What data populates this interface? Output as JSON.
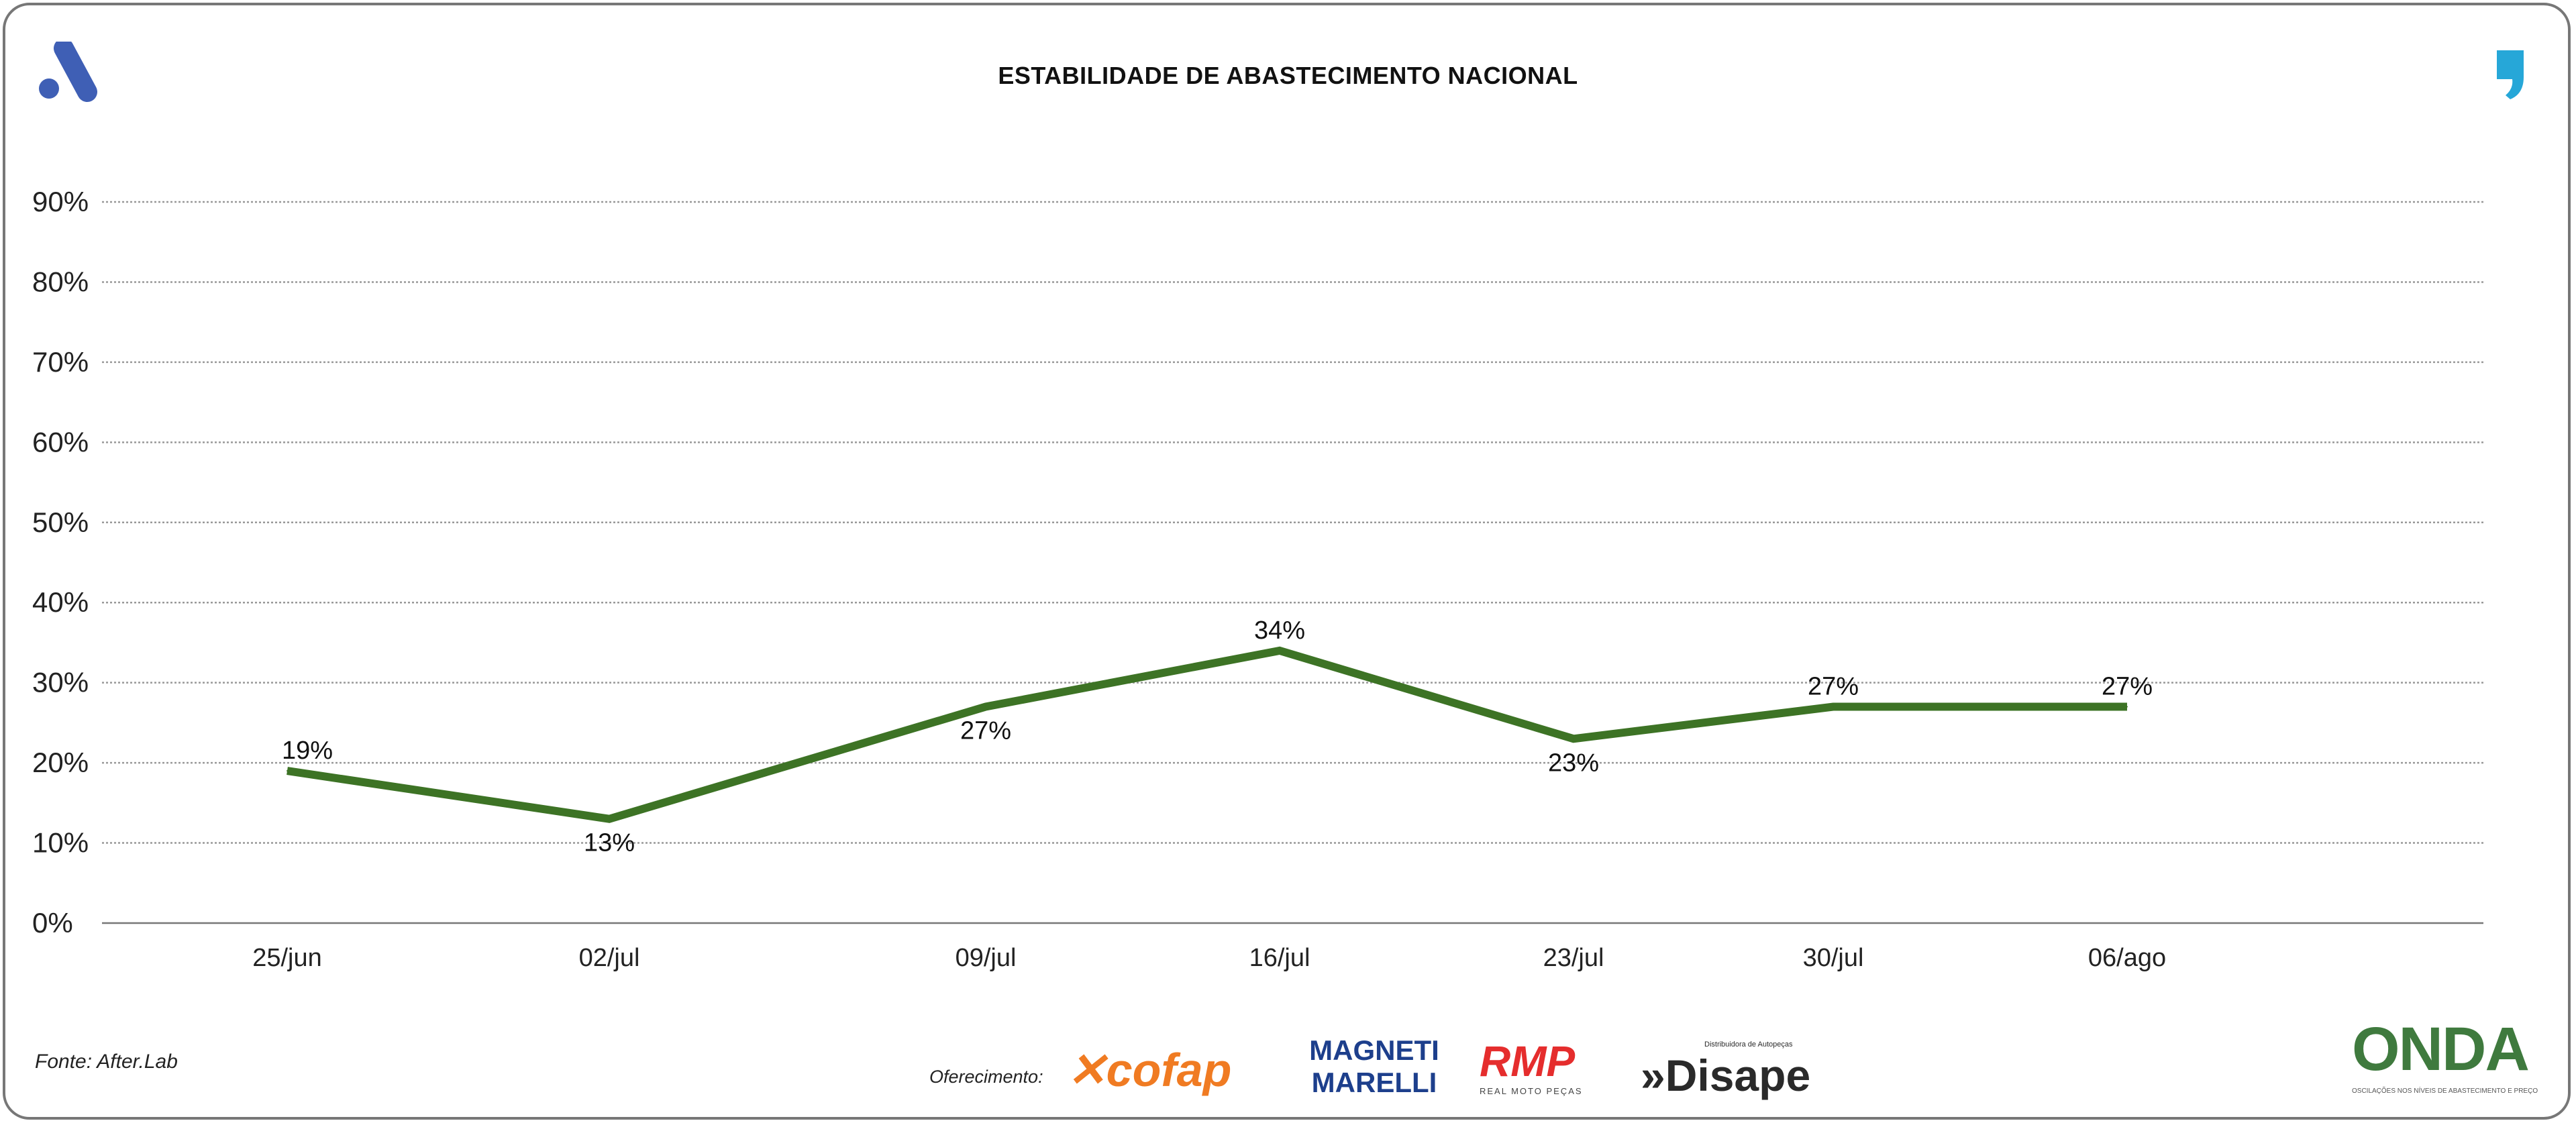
{
  "header": {
    "title": "ESTABILIDADE DE ABASTECIMENTO NACIONAL",
    "left_logo_icon": "a-logo-icon",
    "right_logo_icon": "comma-logo-icon"
  },
  "footer": {
    "source": "Fonte: After.Lab",
    "sponsor_label": "Oferecimento:",
    "sponsors": [
      "cofap",
      "MAGNETI MARELLI",
      "RMP",
      "Disape"
    ],
    "rmp_sub": "REAL MOTO PEÇAS",
    "disape_sub": "Distribuidora de Autopeças",
    "onda": "ONDA",
    "onda_sub": "OSCILAÇÕES NOS NÍVEIS DE ABASTECIMENTO E PREÇO"
  },
  "colors": {
    "line": "#3d7325",
    "grid": "#999999",
    "left_logo": "#3f5fb5",
    "right_logo": "#26a7d8"
  },
  "chart_data": {
    "type": "line",
    "title": "ESTABILIDADE DE ABASTECIMENTO NACIONAL",
    "categories": [
      "25/jun",
      "02/jul",
      "09/jul",
      "16/jul",
      "23/jul",
      "30/jul",
      "06/ago"
    ],
    "series": [
      {
        "values": [
          19,
          13,
          27,
          34,
          23,
          27,
          27
        ]
      }
    ],
    "data_labels": [
      "19%",
      "13%",
      "27%",
      "34%",
      "23%",
      "27%",
      "27%"
    ],
    "y_ticks": [
      "0%",
      "10%",
      "20%",
      "30%",
      "40%",
      "50%",
      "60%",
      "70%",
      "80%",
      "90%"
    ],
    "ylim": [
      0,
      90
    ],
    "grid": true,
    "legend": "none"
  }
}
